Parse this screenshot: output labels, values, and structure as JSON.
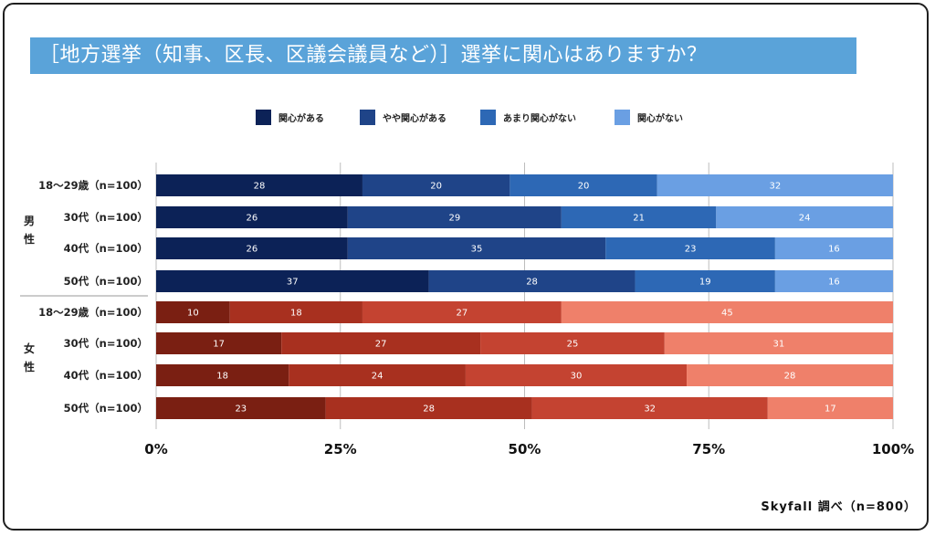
{
  "title": "［地方選挙（知事、区長、区議会議員など）］選挙に関心はありますか？",
  "source_note": "Skyfall 調べ（n=800）",
  "chart_data": {
    "type": "bar",
    "orientation": "horizontal",
    "stacked": "percent",
    "xlim": [
      0,
      100
    ],
    "x_ticks": [
      "0%",
      "25%",
      "50%",
      "75%",
      "100%"
    ],
    "legend": [
      "関心がある",
      "やや関心がある",
      "あまり関心がない",
      "関心がない"
    ],
    "legend_position": "top",
    "groups": [
      {
        "label": "男性",
        "colors": [
          "#0c2257",
          "#1f4488",
          "#2d68b5",
          "#6a9fe3"
        ],
        "rows": [
          {
            "label": "18〜29歳（n=100）",
            "values": [
              28,
              20,
              20,
              32
            ]
          },
          {
            "label": "30代（n=100）",
            "values": [
              26,
              29,
              21,
              24
            ]
          },
          {
            "label": "40代（n=100）",
            "values": [
              26,
              35,
              23,
              16
            ]
          },
          {
            "label": "50代（n=100）",
            "values": [
              37,
              28,
              19,
              16
            ]
          }
        ]
      },
      {
        "label": "女性",
        "colors": [
          "#7a1f12",
          "#a8301f",
          "#c44331",
          "#ef806a"
        ],
        "rows": [
          {
            "label": "18〜29歳（n=100）",
            "values": [
              10,
              18,
              27,
              45
            ]
          },
          {
            "label": "30代（n=100）",
            "values": [
              17,
              27,
              25,
              31
            ]
          },
          {
            "label": "40代（n=100）",
            "values": [
              18,
              24,
              30,
              28
            ]
          },
          {
            "label": "50代（n=100）",
            "values": [
              23,
              28,
              32,
              17
            ]
          }
        ]
      }
    ],
    "legend_colors": [
      "#0c2257",
      "#1f4488",
      "#2d68b5",
      "#6a9fe3"
    ],
    "grid": true
  }
}
